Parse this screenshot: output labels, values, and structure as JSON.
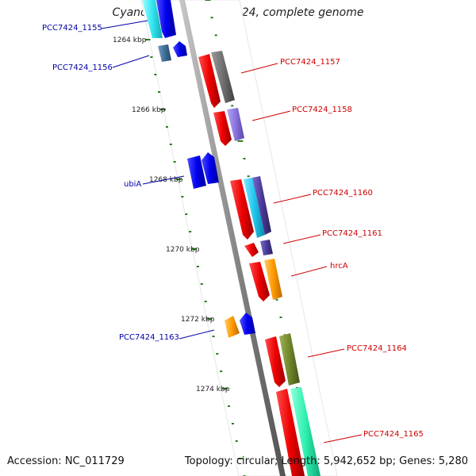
{
  "header": {
    "title": "Cyanothece sp. PCC 7424, complete genome"
  },
  "footer": {
    "accession": "Accession: NC_011729",
    "summary": "Topology: circular; Length: 5,942,652 bp; Genes: 5,280"
  },
  "scale_labels": [
    "1264 kbp",
    "1266 kbp",
    "1268 kbp",
    "1270 kbp",
    "1272 kbp",
    "1274 kbp"
  ],
  "gene_labels": [
    {
      "text": "PCC7424_1155",
      "strand": "minus"
    },
    {
      "text": "PCC7424_1156",
      "strand": "minus"
    },
    {
      "text": "PCC7424_1157",
      "strand": "plus"
    },
    {
      "text": "PCC7424_1158",
      "strand": "plus"
    },
    {
      "text": "ubiA",
      "strand": "minus"
    },
    {
      "text": "PCC7424_1160",
      "strand": "plus"
    },
    {
      "text": "PCC7424_1161",
      "strand": "plus"
    },
    {
      "text": "hrcA",
      "strand": "plus"
    },
    {
      "text": "PCC7424_1163",
      "strand": "minus"
    },
    {
      "text": "PCC7424_1164",
      "strand": "plus"
    },
    {
      "text": "PCC7424_1165",
      "strand": "plus"
    }
  ],
  "colors": {
    "plus_label": "#cc0000",
    "minus_label": "#0000aa",
    "backbone": "#888888",
    "tick": "#2a7a1e",
    "cds": "#ee0000",
    "cds_minus": "#0000ee"
  }
}
